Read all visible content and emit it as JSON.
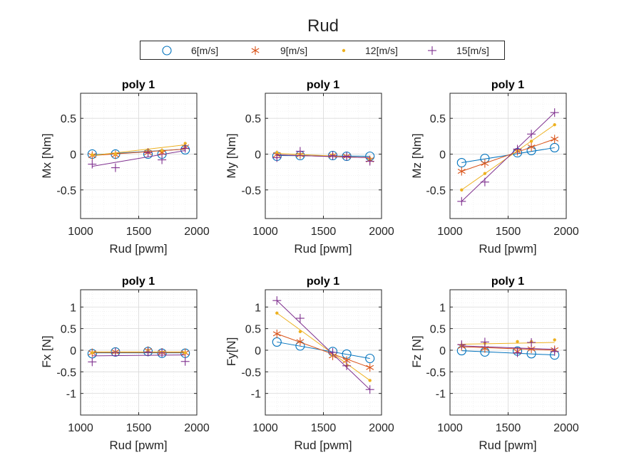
{
  "figure_title": "Rud",
  "colors": {
    "6[m/s]": "#0072BD",
    "9[m/s]": "#D95319",
    "12[m/s]": "#EDB120",
    "15[m/s]": "#7E2F8E",
    "axis": "#262626",
    "grid": "#d9d9d9",
    "minor_grid": "#ebebeb"
  },
  "chart_data": [
    {
      "type": "line",
      "title": "poly 1",
      "xlabel": "Rud [pwm]",
      "ylabel": "Mx [Nm]",
      "xlim": [
        1000,
        2000
      ],
      "ylim": [
        -0.9,
        0.85
      ],
      "xticks": [
        1000,
        1500,
        2000
      ],
      "yticks": [
        -0.5,
        0,
        0.5
      ],
      "ytick_labels": [
        "-0.5",
        "0",
        "0.5"
      ],
      "grid": true,
      "x": [
        1100,
        1300,
        1580,
        1700,
        1900
      ],
      "series": [
        {
          "name": "6[m/s]",
          "marker": "circle",
          "points": [
            0,
            0,
            0,
            0,
            0.06
          ],
          "fit": [
            -0.01,
            0.07
          ]
        },
        {
          "name": "9[m/s]",
          "marker": "asterisk",
          "points": [
            -0.02,
            -0.01,
            0.02,
            0.02,
            0.1
          ],
          "fit": [
            -0.02,
            0.07
          ]
        },
        {
          "name": "12[m/s]",
          "marker": "dot",
          "points": [
            -0.01,
            0,
            0.06,
            0.05,
            0.15
          ],
          "fit": [
            -0.02,
            0.13
          ]
        },
        {
          "name": "15[m/s]",
          "marker": "plus",
          "points": [
            -0.14,
            -0.19,
            0.02,
            -0.08,
            0.08
          ],
          "fit": [
            -0.17,
            0.05
          ]
        }
      ]
    },
    {
      "type": "line",
      "title": "poly 1",
      "xlabel": "Rud [pwm]",
      "ylabel": "My [Nm]",
      "xlim": [
        1000,
        2000
      ],
      "ylim": [
        -0.9,
        0.85
      ],
      "xticks": [
        1000,
        1500,
        2000
      ],
      "yticks": [
        -0.5,
        0,
        0.5
      ],
      "ytick_labels": [
        "-0.5",
        "0",
        "0.5"
      ],
      "grid": true,
      "x": [
        1100,
        1300,
        1580,
        1700,
        1900
      ],
      "series": [
        {
          "name": "6[m/s]",
          "marker": "circle",
          "points": [
            -0.03,
            -0.02,
            -0.02,
            -0.03,
            -0.03
          ],
          "fit": [
            -0.02,
            -0.03
          ]
        },
        {
          "name": "9[m/s]",
          "marker": "asterisk",
          "points": [
            -0.01,
            -0.01,
            -0.02,
            -0.03,
            -0.08
          ],
          "fit": [
            -0.01,
            -0.05
          ]
        },
        {
          "name": "12[m/s]",
          "marker": "dot",
          "points": [
            0.02,
            0,
            -0.01,
            -0.03,
            -0.06
          ],
          "fit": [
            0.01,
            -0.05
          ]
        },
        {
          "name": "15[m/s]",
          "marker": "plus",
          "points": [
            -0.05,
            0.04,
            -0.02,
            -0.03,
            -0.1
          ],
          "fit": [
            -0.01,
            -0.05
          ]
        }
      ]
    },
    {
      "type": "line",
      "title": "poly 1",
      "xlabel": "Rud [pwm]",
      "ylabel": "Mz [Nm]",
      "xlim": [
        1000,
        2000
      ],
      "ylim": [
        -0.9,
        0.85
      ],
      "xticks": [
        1000,
        1500,
        2000
      ],
      "yticks": [
        -0.5,
        0,
        0.5
      ],
      "ytick_labels": [
        "-0.5",
        "0",
        "0.5"
      ],
      "grid": true,
      "x": [
        1100,
        1300,
        1580,
        1700,
        1900
      ],
      "series": [
        {
          "name": "6[m/s]",
          "marker": "circle",
          "points": [
            -0.12,
            -0.06,
            0.02,
            0.05,
            0.09
          ],
          "fit": [
            -0.12,
            0.09
          ]
        },
        {
          "name": "9[m/s]",
          "marker": "asterisk",
          "points": [
            -0.24,
            -0.13,
            0.04,
            0.1,
            0.21
          ],
          "fit": [
            -0.24,
            0.21
          ]
        },
        {
          "name": "12[m/s]",
          "marker": "dot",
          "points": [
            -0.5,
            -0.27,
            0.05,
            0.18,
            0.41
          ],
          "fit": [
            -0.5,
            0.41
          ]
        },
        {
          "name": "15[m/s]",
          "marker": "plus",
          "points": [
            -0.66,
            -0.39,
            0.07,
            0.28,
            0.58
          ],
          "fit": [
            -0.66,
            0.58
          ]
        }
      ]
    },
    {
      "type": "line",
      "title": "poly 1",
      "xlabel": "Rud [pwm]",
      "ylabel": "Fx [N]",
      "xlim": [
        1000,
        2000
      ],
      "ylim": [
        -1.5,
        1.4
      ],
      "xticks": [
        1000,
        1500,
        2000
      ],
      "yticks": [
        -1,
        -0.5,
        0,
        0.5,
        1
      ],
      "ytick_labels": [
        "-1",
        "-0.5",
        "0",
        "0.5",
        "1"
      ],
      "grid": true,
      "x": [
        1100,
        1300,
        1580,
        1700,
        1900
      ],
      "series": [
        {
          "name": "6[m/s]",
          "marker": "circle",
          "points": [
            -0.08,
            -0.04,
            -0.03,
            -0.07,
            -0.07
          ],
          "fit": [
            -0.06,
            -0.06
          ]
        },
        {
          "name": "9[m/s]",
          "marker": "asterisk",
          "points": [
            -0.06,
            -0.04,
            -0.01,
            -0.05,
            -0.06
          ],
          "fit": [
            -0.05,
            -0.05
          ]
        },
        {
          "name": "12[m/s]",
          "marker": "dot",
          "points": [
            -0.06,
            -0.05,
            0,
            -0.05,
            -0.06
          ],
          "fit": [
            -0.04,
            -0.04
          ]
        },
        {
          "name": "15[m/s]",
          "marker": "plus",
          "points": [
            -0.27,
            -0.05,
            -0.04,
            -0.06,
            -0.26
          ],
          "fit": [
            -0.13,
            -0.11
          ]
        }
      ]
    },
    {
      "type": "line",
      "title": "poly 1",
      "xlabel": "Rud [pwm]",
      "ylabel": "Fy[N]",
      "xlim": [
        1000,
        2000
      ],
      "ylim": [
        -1.5,
        1.4
      ],
      "xticks": [
        1000,
        1500,
        2000
      ],
      "yticks": [
        -1,
        -0.5,
        0,
        0.5,
        1
      ],
      "ytick_labels": [
        "-1",
        "-0.5",
        "0",
        "0.5",
        "1"
      ],
      "grid": true,
      "x": [
        1100,
        1300,
        1580,
        1700,
        1900
      ],
      "series": [
        {
          "name": "6[m/s]",
          "marker": "circle",
          "points": [
            0.19,
            0.1,
            -0.03,
            -0.09,
            -0.19
          ],
          "fit": [
            0.19,
            -0.19
          ]
        },
        {
          "name": "9[m/s]",
          "marker": "asterisk",
          "points": [
            0.38,
            0.2,
            -0.13,
            -0.24,
            -0.4
          ],
          "fit": [
            0.38,
            -0.4
          ]
        },
        {
          "name": "12[m/s]",
          "marker": "dot",
          "points": [
            0.86,
            0.43,
            -0.12,
            -0.36,
            -0.7
          ],
          "fit": [
            0.86,
            -0.7
          ]
        },
        {
          "name": "15[m/s]",
          "marker": "plus",
          "points": [
            1.15,
            0.74,
            -0.05,
            -0.36,
            -0.91
          ],
          "fit": [
            1.15,
            -0.91
          ]
        }
      ]
    },
    {
      "type": "line",
      "title": "poly 1",
      "xlabel": "Rud [pwm]",
      "ylabel": "Fz [N]",
      "xlim": [
        1000,
        2000
      ],
      "ylim": [
        -1.5,
        1.4
      ],
      "xticks": [
        1000,
        1500,
        2000
      ],
      "yticks": [
        -1,
        -0.5,
        0,
        0.5,
        1
      ],
      "ytick_labels": [
        "-1",
        "-0.5",
        "0",
        "0.5",
        "1"
      ],
      "grid": true,
      "x": [
        1100,
        1300,
        1580,
        1700,
        1900
      ],
      "series": [
        {
          "name": "6[m/s]",
          "marker": "circle",
          "points": [
            -0.01,
            -0.04,
            -0.02,
            -0.08,
            -0.11
          ],
          "fit": [
            -0.01,
            -0.11
          ]
        },
        {
          "name": "9[m/s]",
          "marker": "asterisk",
          "points": [
            0.09,
            0.04,
            -0.03,
            0.03,
            0.01
          ],
          "fit": [
            0.08,
            0
          ]
        },
        {
          "name": "12[m/s]",
          "marker": "dot",
          "points": [
            0.12,
            0.16,
            0.2,
            0.2,
            0.24
          ],
          "fit": [
            0.14,
            0.18
          ]
        },
        {
          "name": "15[m/s]",
          "marker": "plus",
          "points": [
            0.13,
            0.19,
            -0.06,
            0.18,
            -0.03
          ],
          "fit": [
            0.1,
            0.02
          ]
        }
      ]
    }
  ]
}
